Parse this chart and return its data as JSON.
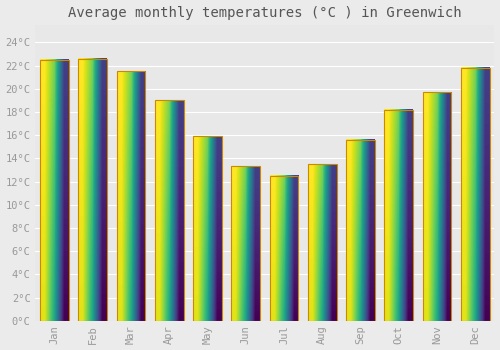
{
  "title": "Average monthly temperatures (°C ) in Greenwich",
  "months": [
    "Jan",
    "Feb",
    "Mar",
    "Apr",
    "May",
    "Jun",
    "Jul",
    "Aug",
    "Sep",
    "Oct",
    "Nov",
    "Dec"
  ],
  "values": [
    22.5,
    22.6,
    21.5,
    19.0,
    15.9,
    13.3,
    12.5,
    13.5,
    15.6,
    18.2,
    19.7,
    21.8
  ],
  "ytick_labels": [
    "0°C",
    "2°C",
    "4°C",
    "6°C",
    "8°C",
    "10°C",
    "12°C",
    "14°C",
    "16°C",
    "18°C",
    "20°C",
    "22°C",
    "24°C"
  ],
  "ytick_values": [
    0,
    2,
    4,
    6,
    8,
    10,
    12,
    14,
    16,
    18,
    20,
    22,
    24
  ],
  "ylim": [
    0,
    25.5
  ],
  "background_color": "#ebebeb",
  "plot_bg_color": "#e8e8e8",
  "grid_color": "#ffffff",
  "tick_label_color": "#999999",
  "title_color": "#555555",
  "title_fontsize": 10,
  "tick_fontsize": 7.5,
  "bar_color_bottom": "#F5A623",
  "bar_color_top": "#FFD24D",
  "bar_edge_color": "#CC8800",
  "bar_width": 0.75
}
